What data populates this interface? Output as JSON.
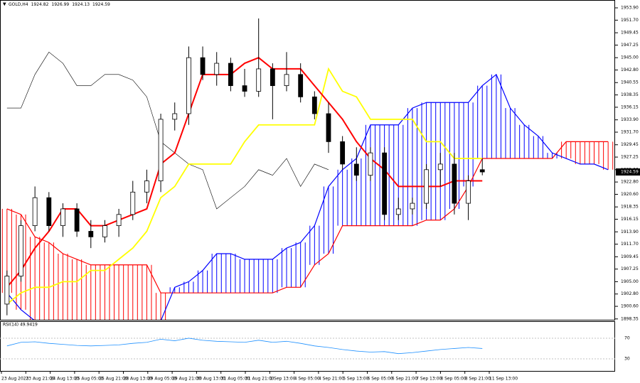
{
  "chart_data": [
    {
      "type": "candlestick",
      "title": "GOLD,H4",
      "header_values": [
        1924.82,
        1926.99,
        1924.13,
        1924.59
      ],
      "open": [
        1901,
        1906,
        1915,
        1920,
        1915,
        1918,
        1914,
        1913,
        1915,
        1917,
        1921,
        1923,
        1934,
        1935,
        1945,
        1942,
        1944,
        1940,
        1939,
        1943,
        1940,
        1942,
        1938,
        1935,
        1930,
        1926,
        1924,
        1928,
        1917,
        1918,
        1919,
        1925,
        1926,
        1919,
        1925
      ],
      "high": [
        1907,
        1916,
        1922,
        1921,
        1919,
        1919,
        1916,
        1916,
        1918,
        1923,
        1925,
        1935,
        1937,
        1947,
        1947,
        1946,
        1945,
        1943,
        1952,
        1944,
        1946,
        1944,
        1939,
        1937,
        1931,
        1929,
        1929,
        1929,
        1920,
        1920,
        1926,
        1928,
        1928,
        1924,
        1927
      ],
      "low": [
        1899,
        1905,
        1914,
        1914,
        1913,
        1913,
        1911,
        1912,
        1913,
        1916,
        1919,
        1921,
        1932,
        1933,
        1941,
        1940,
        1939,
        1938,
        1938,
        1934,
        1939,
        1937,
        1934,
        1928,
        1925,
        1923,
        1923,
        1916,
        1916,
        1917,
        1918,
        1922,
        1917,
        1916,
        1924
      ],
      "close": [
        1906,
        1915,
        1920,
        1915,
        1918,
        1914,
        1913,
        1915,
        1917,
        1921,
        1923,
        1934,
        1935,
        1945,
        1942,
        1944,
        1940,
        1939,
        1943,
        1940,
        1942,
        1938,
        1935,
        1930,
        1926,
        1924,
        1928,
        1917,
        1918,
        1919,
        1925,
        1926,
        1919,
        1923,
        1924.59
      ],
      "up_color": "#ffffff",
      "down_color": "#000000",
      "tenkan": {
        "color": "#ff0000",
        "values": [
          1904,
          1907,
          1911,
          1914,
          1918,
          1918,
          1915,
          1915,
          1916,
          1917,
          1918,
          1926,
          1928,
          1935,
          1942,
          1942,
          1942,
          1944,
          1945,
          1943,
          1943,
          1943,
          1940,
          1937,
          1934,
          1930,
          1927,
          1925,
          1922,
          1922,
          1922,
          1922,
          1923,
          1923,
          1923
        ]
      },
      "kijun": {
        "color": "#ffff00",
        "values": [
          1901,
          1903,
          1904,
          1904,
          1905,
          1905,
          1907,
          1907,
          1909,
          1911,
          1914,
          1920,
          1922,
          1926,
          1926,
          1926,
          1926,
          1930,
          1933,
          1933,
          1933,
          1933,
          1933,
          1943,
          1939,
          1938,
          1934,
          1934,
          1934,
          1934,
          1930,
          1930,
          1927,
          1927,
          1927
        ]
      },
      "chikou": {
        "color": "#000000",
        "values": [
          1936,
          1936,
          1942,
          1946,
          1944,
          1940,
          1940,
          1942,
          1942,
          1941,
          1938,
          1930,
          1928,
          1926,
          1925,
          1918,
          1920,
          1922,
          1925,
          1924,
          1927,
          1922,
          1926,
          1925,
          null,
          null,
          null,
          null,
          null,
          null,
          null,
          null,
          null,
          null,
          null
        ]
      },
      "span_a": {
        "color": "#ff0000",
        "values": [
          1918,
          1917,
          1913,
          1912,
          1910,
          1909,
          1908,
          1908,
          1908,
          1908,
          1908,
          1903,
          1903,
          1903,
          1903,
          1903,
          1903,
          1903,
          1903,
          1903,
          1904,
          1904,
          1908,
          1910,
          1915,
          1915,
          1915,
          1915,
          1915,
          1915,
          1916,
          1916,
          1918,
          1922,
          1927,
          1927,
          1927,
          1927,
          1927,
          1927,
          1930,
          1930,
          1930,
          1930
        ]
      },
      "span_b": {
        "color": "#0000ff",
        "values": [
          1903,
          1900,
          1898,
          1897,
          1896,
          1896,
          1896,
          1896,
          1896,
          1896,
          1896,
          1898,
          1904,
          1905,
          1907,
          1910,
          1910,
          1909,
          1909,
          1909,
          1911,
          1912,
          1915,
          1922,
          1925,
          1927,
          1933,
          1933,
          1933,
          1936,
          1937,
          1937,
          1937,
          1937,
          1940,
          1942,
          1936,
          1933,
          1931,
          1928,
          1927,
          1926,
          1926,
          1925
        ]
      },
      "ylim": [
        1898.2,
        1955.3
      ],
      "yticks": [
        {
          "value": 1953.9,
          "label": "1953.90"
        },
        {
          "value": 1951.7,
          "label": "1951.70"
        },
        1949.45,
        1947.25,
        {
          "value": 1945,
          "label": "1945.00"
        },
        {
          "value": 1942.8,
          "label": "1942.80"
        },
        1940.55,
        1938.35,
        1936.15,
        {
          "value": 1933.9,
          "label": "1933.90"
        },
        {
          "value": 1931.7,
          "label": "1931.70"
        },
        1929.45,
        1927.25,
        {
          "value": 1925,
          "label": "1925.00"
        },
        {
          "value": 1922.8,
          "label": "1922.80"
        },
        {
          "value": 1920.6,
          "label": "1920.60"
        },
        1918.35,
        1916.15,
        {
          "value": 1913.9,
          "label": "1913.90"
        },
        {
          "value": 1911.7,
          "label": "1911.70"
        },
        1909.45,
        1907.25,
        {
          "value": 1905,
          "label": "1905.00"
        },
        {
          "value": 1902.8,
          "label": "1902.80"
        },
        {
          "value": 1900.6,
          "label": "1900.60"
        },
        1898.35
      ],
      "x_labels": [
        "23 Aug 2023",
        "23 Aug 21:00",
        "24 Aug 13:00",
        "25 Aug 05:00",
        "25 Aug 21:00",
        "28 Aug 13:00",
        "29 Aug 05:00",
        "29 Aug 21:00",
        "30 Aug 13:00",
        "31 Aug 05:00",
        "31 Aug 21:00",
        "1 Sep 13:00",
        "4 Sep 05:00",
        "4 Sep 21:00",
        "5 Sep 13:00",
        "6 Sep 05:00",
        "6 Sep 21:00",
        "7 Sep 13:00",
        "8 Sep 05:00",
        "8 Sep 21:00",
        "11 Sep 13:00"
      ]
    },
    {
      "type": "line",
      "title": "RSI(14) 49.9419",
      "color": "#1e90ff",
      "values": [
        55,
        62,
        63,
        60,
        58,
        56,
        55,
        56,
        57,
        60,
        62,
        68,
        65,
        70,
        66,
        64,
        63,
        62,
        66,
        62,
        64,
        60,
        55,
        52,
        48,
        45,
        43,
        44,
        40,
        42,
        45,
        48,
        50,
        52,
        50
      ],
      "ylim": [
        6.5,
        103
      ],
      "yticks": [
        70,
        30
      ]
    }
  ]
}
